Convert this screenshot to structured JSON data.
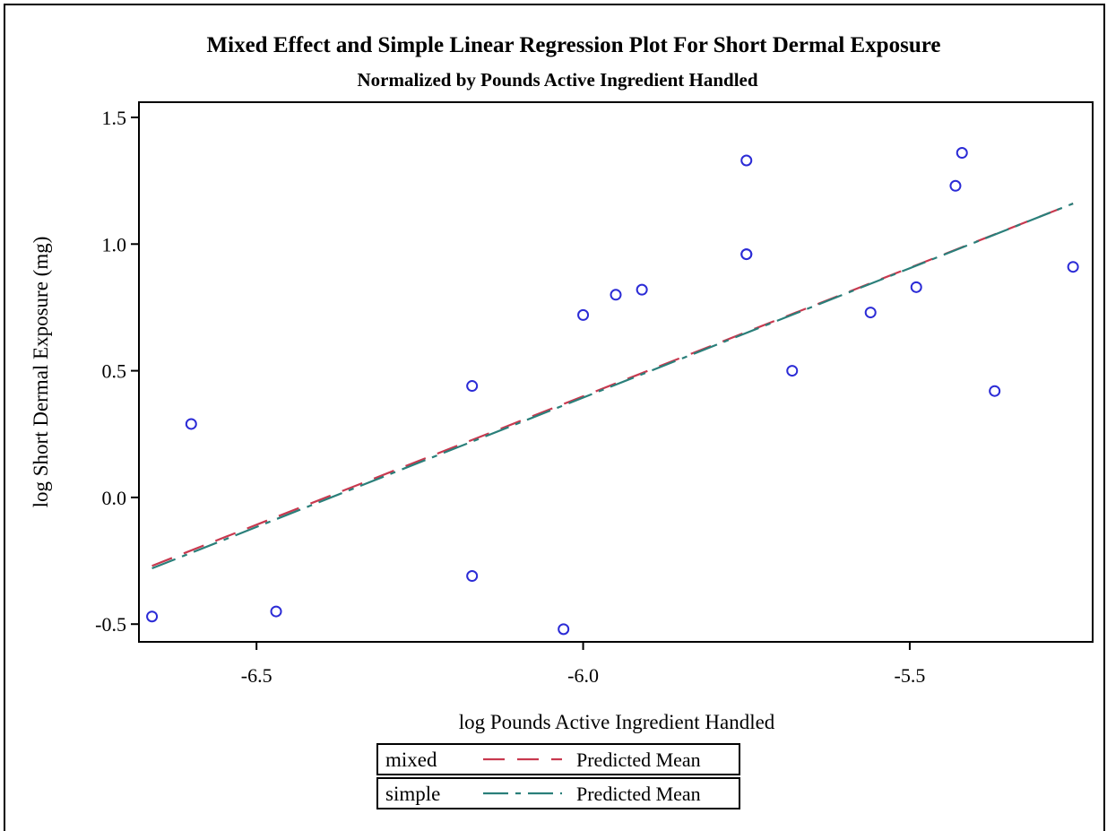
{
  "chart_data": {
    "type": "scatter",
    "title": "Mixed Effect and Simple Linear Regression Plot For Short Dermal Exposure",
    "subtitle": "Normalized by Pounds Active Ingredient Handled",
    "xlabel": "log Pounds Active Ingredient Handled",
    "ylabel": "log Short Dermal Exposure (mg)",
    "xlim": [
      -6.68,
      -5.22
    ],
    "ylim": [
      -0.57,
      1.56
    ],
    "x_ticks": [
      -6.5,
      -6.0,
      -5.5
    ],
    "x_tick_labels": [
      "-6.5",
      "-6.0",
      "-5.5"
    ],
    "y_ticks": [
      -0.5,
      0.0,
      0.5,
      1.0,
      1.5
    ],
    "y_tick_labels": [
      "-0.5",
      "0.0",
      "0.5",
      "1.0",
      "1.5"
    ],
    "grid": false,
    "points": {
      "color": "#2b2bd6",
      "x": [
        -6.66,
        -6.6,
        -6.47,
        -6.17,
        -6.17,
        -6.03,
        -6.0,
        -5.95,
        -5.91,
        -5.75,
        -5.75,
        -5.75,
        -5.68,
        -5.56,
        -5.49,
        -5.43,
        -5.42,
        -5.37,
        -5.25
      ],
      "y": [
        -0.47,
        0.29,
        -0.45,
        0.44,
        -0.31,
        -0.52,
        0.72,
        0.8,
        0.82,
        1.33,
        0.96,
        0.96,
        0.5,
        0.73,
        0.83,
        1.23,
        1.36,
        0.42,
        0.91
      ]
    },
    "series": [
      {
        "name": "mixed",
        "label": "Predicted Mean",
        "style": "dashed",
        "color": "#c8394f",
        "x": [
          -6.66,
          -5.25
        ],
        "y": [
          -0.27,
          1.16
        ]
      },
      {
        "name": "simple",
        "label": "Predicted Mean",
        "style": "dash-dot",
        "color": "#2a7f7a",
        "x": [
          -6.66,
          -5.25
        ],
        "y": [
          -0.28,
          1.16
        ]
      }
    ],
    "legend": {
      "placement": "bottom-center",
      "entries": [
        {
          "group": "mixed",
          "label": "Predicted Mean"
        },
        {
          "group": "simple",
          "label": "Predicted Mean"
        }
      ]
    }
  }
}
